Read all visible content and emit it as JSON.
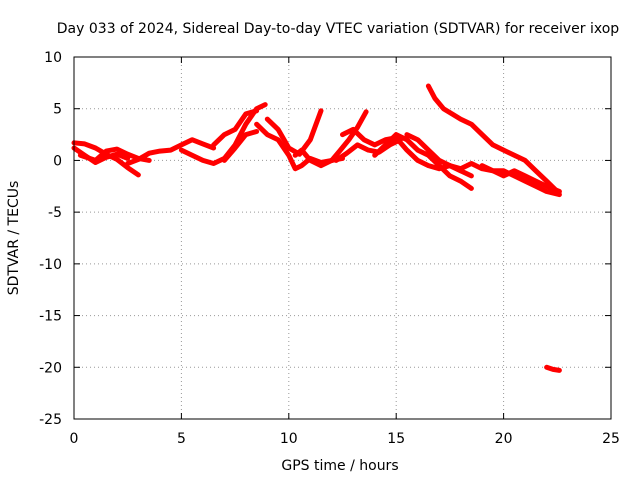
{
  "chart_data": {
    "type": "line",
    "title": "Day 033 of 2024, Sidereal Day-to-day VTEC variation (SDTVAR) for receiver ixop",
    "xlabel": "GPS time / hours",
    "ylabel": "SDTVAR / TECUs",
    "xlim": [
      0,
      25
    ],
    "ylim": [
      -25,
      10
    ],
    "xticks": [
      0,
      5,
      10,
      15,
      20,
      25
    ],
    "yticks": [
      -25,
      -20,
      -15,
      -10,
      -5,
      0,
      5,
      10
    ],
    "grid": true,
    "legend": null,
    "series": [
      {
        "name": "track-a",
        "color": "#ff0000",
        "x": [
          0.0,
          0.5,
          1.0,
          1.5,
          2.0,
          2.5,
          3.0
        ],
        "y": [
          1.7,
          1.6,
          1.2,
          0.6,
          0.1,
          -0.7,
          -1.4
        ]
      },
      {
        "name": "track-b",
        "color": "#ff0000",
        "x": [
          0.0,
          0.5,
          1.0,
          1.5,
          2.0,
          2.5
        ],
        "y": [
          1.2,
          0.5,
          -0.2,
          0.3,
          0.6,
          0.2
        ]
      },
      {
        "name": "track-c",
        "color": "#ff0000",
        "x": [
          0.3,
          1.0,
          1.5,
          2.0,
          2.5,
          3.0,
          3.5
        ],
        "y": [
          0.5,
          0.0,
          0.9,
          1.1,
          0.6,
          0.2,
          0.0
        ]
      },
      {
        "name": "track-d",
        "color": "#ff0000",
        "x": [
          2.5,
          3.0,
          3.5,
          4.0,
          4.5,
          5.0,
          5.5,
          6.0,
          6.5
        ],
        "y": [
          -0.3,
          0.1,
          0.7,
          0.9,
          1.0,
          1.5,
          2.0,
          1.6,
          1.2
        ]
      },
      {
        "name": "track-e",
        "color": "#ff0000",
        "x": [
          5.0,
          5.5,
          6.0,
          6.5,
          7.0,
          7.5,
          8.0,
          8.5,
          8.9
        ],
        "y": [
          1.0,
          0.5,
          0.0,
          -0.3,
          0.2,
          1.5,
          3.5,
          5.0,
          5.4
        ]
      },
      {
        "name": "track-f",
        "color": "#ff0000",
        "x": [
          6.5,
          7.0,
          7.5,
          8.0,
          8.5
        ],
        "y": [
          1.5,
          2.5,
          3.0,
          4.5,
          4.8
        ]
      },
      {
        "name": "track-g",
        "color": "#ff0000",
        "x": [
          7.0,
          7.5,
          8.0,
          8.5
        ],
        "y": [
          0.0,
          1.2,
          2.5,
          2.8
        ]
      },
      {
        "name": "track-h",
        "color": "#ff0000",
        "x": [
          8.5,
          9.0,
          9.5,
          10.0,
          10.3,
          10.6,
          11.0,
          11.5,
          12.0
        ],
        "y": [
          3.5,
          2.5,
          2.0,
          0.5,
          -0.8,
          -0.5,
          0.2,
          -0.2,
          0.0
        ]
      },
      {
        "name": "track-i",
        "color": "#ff0000",
        "x": [
          9.0,
          9.5,
          10.0,
          10.5,
          11.0,
          11.5
        ],
        "y": [
          4.0,
          3.0,
          1.2,
          0.6,
          2.0,
          4.8
        ]
      },
      {
        "name": "track-j",
        "color": "#ff0000",
        "x": [
          10.3,
          10.6,
          11.0,
          11.5,
          12.0,
          12.5
        ],
        "y": [
          0.5,
          1.0,
          0.0,
          -0.5,
          0.0,
          0.2
        ]
      },
      {
        "name": "track-k",
        "color": "#ff0000",
        "x": [
          12.0,
          12.4,
          12.8,
          13.2,
          13.6
        ],
        "y": [
          0.0,
          1.0,
          2.0,
          3.2,
          4.7
        ]
      },
      {
        "name": "track-l",
        "color": "#ff0000",
        "x": [
          12.2,
          12.7,
          13.2,
          13.7,
          14.2,
          14.7,
          15.2
        ],
        "y": [
          0.0,
          0.7,
          1.5,
          1.0,
          0.8,
          1.5,
          2.0
        ]
      },
      {
        "name": "track-m",
        "color": "#ff0000",
        "x": [
          12.5,
          13.0,
          13.5,
          14.0,
          14.5,
          15.0,
          15.5,
          16.0,
          16.5,
          17.0,
          17.5,
          18.0
        ],
        "y": [
          2.5,
          3.0,
          2.0,
          1.5,
          2.0,
          2.2,
          1.0,
          0.0,
          -0.5,
          -0.8,
          -0.5,
          -1.0
        ]
      },
      {
        "name": "track-n",
        "color": "#ff0000",
        "x": [
          14.0,
          14.5,
          15.0,
          15.5,
          16.0,
          16.5,
          17.0,
          17.5,
          18.0,
          18.5
        ],
        "y": [
          0.5,
          1.5,
          2.5,
          2.0,
          1.0,
          0.5,
          -0.5,
          -1.5,
          -2.0,
          -2.7
        ]
      },
      {
        "name": "track-o",
        "color": "#ff0000",
        "x": [
          15.5,
          16.0,
          16.5,
          17.0,
          17.5,
          18.0,
          18.5
        ],
        "y": [
          2.5,
          2.0,
          1.0,
          0.0,
          -0.5,
          -1.0,
          -1.5
        ]
      },
      {
        "name": "track-p",
        "color": "#ff0000",
        "x": [
          16.5,
          16.8,
          17.2,
          17.6,
          18.0,
          18.5,
          19.0,
          19.5,
          20.0,
          20.5,
          21.0,
          21.5,
          22.0,
          22.5
        ],
        "y": [
          7.2,
          6.0,
          5.0,
          4.5,
          4.0,
          3.5,
          2.5,
          1.5,
          1.0,
          0.5,
          0.0,
          -1.0,
          -2.0,
          -3.0
        ]
      },
      {
        "name": "track-q",
        "color": "#ff0000",
        "x": [
          17.5,
          18.0,
          18.5,
          19.0,
          19.5,
          20.0,
          20.5,
          21.0,
          21.5,
          22.0,
          22.6
        ],
        "y": [
          -0.5,
          -0.8,
          -0.3,
          -0.8,
          -1.0,
          -1.5,
          -1.0,
          -1.5,
          -2.0,
          -2.5,
          -3.0
        ]
      },
      {
        "name": "track-r",
        "color": "#ff0000",
        "x": [
          19.0,
          19.5,
          20.0,
          20.5,
          21.0,
          21.5,
          22.0,
          22.6
        ],
        "y": [
          -0.5,
          -1.0,
          -1.0,
          -1.5,
          -2.0,
          -2.5,
          -3.0,
          -3.3
        ]
      },
      {
        "name": "track-s",
        "color": "#ff0000",
        "x": [
          22.0,
          22.3,
          22.6
        ],
        "y": [
          -20.0,
          -20.2,
          -20.3
        ]
      }
    ]
  }
}
